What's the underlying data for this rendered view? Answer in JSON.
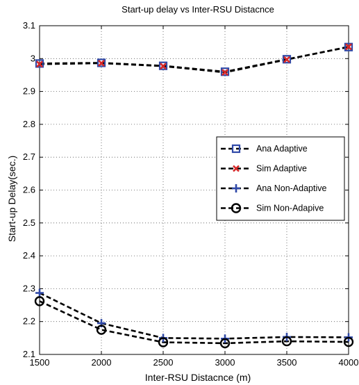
{
  "chart_data": {
    "type": "line",
    "title": "Start-up delay vs Inter-RSU Distacnce",
    "xlabel": "Inter-RSU Distacnce (m)",
    "ylabel": "Start-up Delay(sec.)",
    "x": [
      1500,
      2000,
      2500,
      3000,
      3500,
      4000
    ],
    "xlim": [
      1500,
      4000
    ],
    "ylim": [
      2.1,
      3.1
    ],
    "xticks": [
      "1500",
      "2000",
      "2500",
      "3000",
      "3500",
      "4000"
    ],
    "yticks": [
      "2.1",
      "2.2",
      "2.3",
      "2.4",
      "2.5",
      "2.6",
      "2.7",
      "2.8",
      "2.9",
      "3",
      "3.1"
    ],
    "grid": true,
    "legend_position": "right",
    "series": [
      {
        "name": "Ana Adaptive",
        "marker": "square",
        "color": "#2f49a8",
        "values": [
          2.985,
          2.987,
          2.978,
          2.96,
          2.998,
          3.035
        ]
      },
      {
        "name": "Sim Adaptive",
        "marker": "x",
        "color": "#d62728",
        "values": [
          2.983,
          2.986,
          2.977,
          2.958,
          2.997,
          3.036
        ]
      },
      {
        "name": "Ana Non-Adaptive",
        "marker": "plus",
        "color": "#2f49a8",
        "values": [
          2.287,
          2.195,
          2.15,
          2.148,
          2.153,
          2.152
        ]
      },
      {
        "name": "Sim Non-Adapive",
        "marker": "circle",
        "color": "#000000",
        "values": [
          2.262,
          2.175,
          2.137,
          2.134,
          2.14,
          2.138
        ]
      }
    ]
  }
}
